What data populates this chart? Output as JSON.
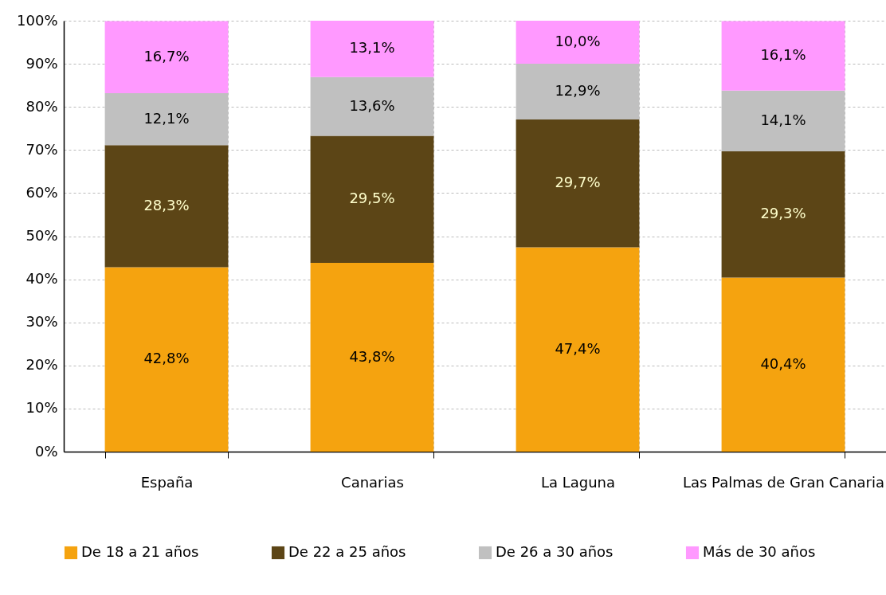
{
  "chart_data": {
    "type": "bar",
    "stacked": true,
    "categories": [
      "España",
      "Canarias",
      "La Laguna",
      "Las Palmas de Gran Canaria"
    ],
    "series": [
      {
        "name": "De 18 a 21 años",
        "color": "#f5a30f",
        "values": [
          42.8,
          43.8,
          47.4,
          40.4
        ],
        "value_labels": [
          "42,8%",
          "43,8%",
          "47,4%",
          "40,4%"
        ]
      },
      {
        "name": "De 22 a 25 años",
        "color": "#5c4516",
        "values": [
          28.3,
          29.5,
          29.7,
          29.3
        ],
        "value_labels": [
          "28,3%",
          "29,5%",
          "29,7%",
          "29,3%"
        ]
      },
      {
        "name": "De 26 a 30 años",
        "color": "#c0c0c0",
        "values": [
          12.1,
          13.6,
          12.9,
          14.1
        ],
        "value_labels": [
          "12,1%",
          "13,6%",
          "12,9%",
          "14,1%"
        ]
      },
      {
        "name": "Más de 30 años",
        "color": "#ff99ff",
        "values": [
          16.7,
          13.1,
          10.0,
          16.1
        ],
        "value_labels": [
          "16,7%",
          "13,1%",
          "10,0%",
          "16,1%"
        ]
      }
    ],
    "ylim": [
      0,
      100
    ],
    "yticks": [
      {
        "value": 0,
        "label": "0%"
      },
      {
        "value": 10,
        "label": "10%"
      },
      {
        "value": 20,
        "label": "20%"
      },
      {
        "value": 30,
        "label": "30%"
      },
      {
        "value": 40,
        "label": "40%"
      },
      {
        "value": 50,
        "label": "50%"
      },
      {
        "value": 60,
        "label": "60%"
      },
      {
        "value": 70,
        "label": "70%"
      },
      {
        "value": 80,
        "label": "80%"
      },
      {
        "value": 90,
        "label": "90%"
      },
      {
        "value": 100,
        "label": "100%"
      }
    ],
    "grid": true,
    "legend": "bottom"
  }
}
